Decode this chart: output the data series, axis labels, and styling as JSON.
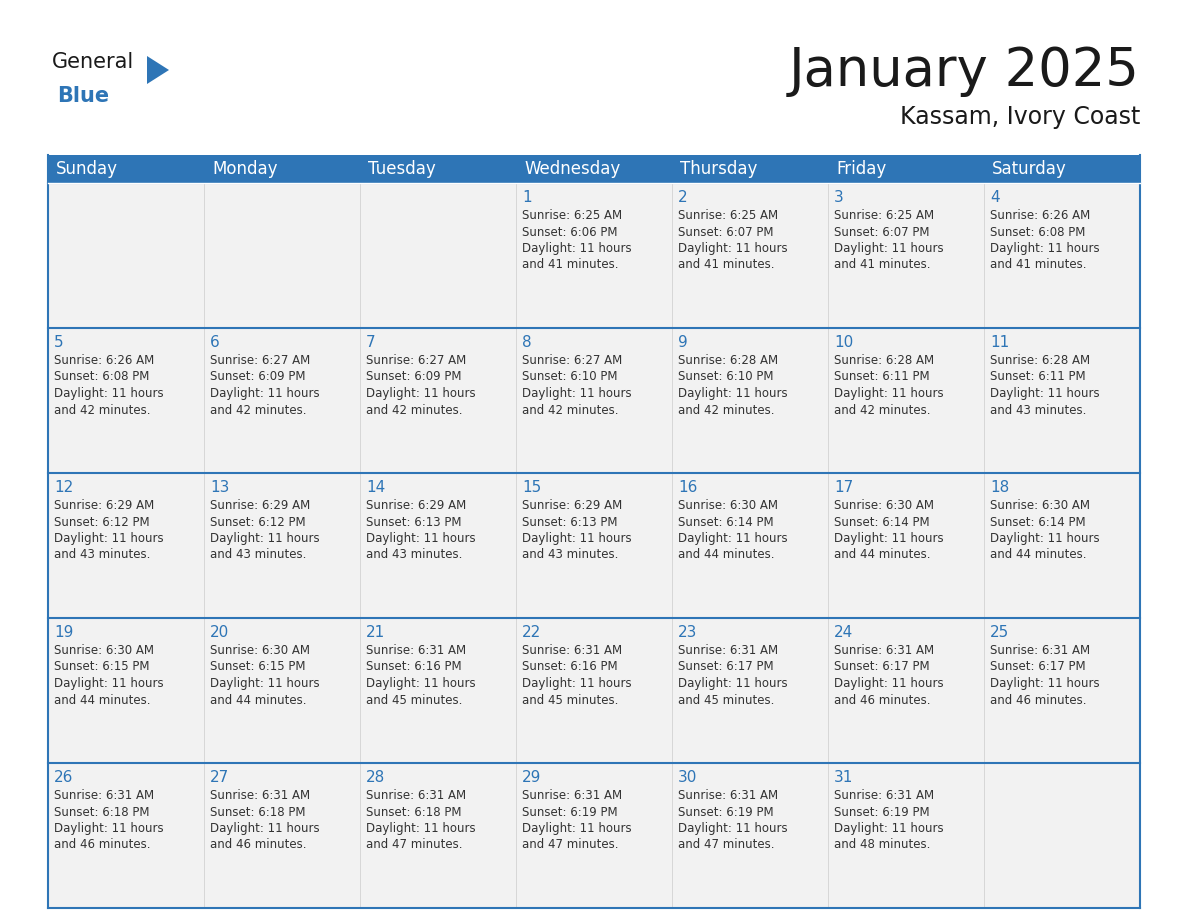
{
  "title": "January 2025",
  "subtitle": "Kassam, Ivory Coast",
  "header_bg": "#2E75B6",
  "header_text_color": "#FFFFFF",
  "cell_bg_light": "#F2F2F2",
  "cell_bg_white": "#FFFFFF",
  "cell_border_color": "#2E75B6",
  "day_number_color": "#2E75B6",
  "cell_text_color": "#333333",
  "background_color": "#FFFFFF",
  "days_of_week": [
    "Sunday",
    "Monday",
    "Tuesday",
    "Wednesday",
    "Thursday",
    "Friday",
    "Saturday"
  ],
  "weeks": [
    [
      {
        "day": 0,
        "info": ""
      },
      {
        "day": 0,
        "info": ""
      },
      {
        "day": 0,
        "info": ""
      },
      {
        "day": 1,
        "info": "Sunrise: 6:25 AM\nSunset: 6:06 PM\nDaylight: 11 hours\nand 41 minutes."
      },
      {
        "day": 2,
        "info": "Sunrise: 6:25 AM\nSunset: 6:07 PM\nDaylight: 11 hours\nand 41 minutes."
      },
      {
        "day": 3,
        "info": "Sunrise: 6:25 AM\nSunset: 6:07 PM\nDaylight: 11 hours\nand 41 minutes."
      },
      {
        "day": 4,
        "info": "Sunrise: 6:26 AM\nSunset: 6:08 PM\nDaylight: 11 hours\nand 41 minutes."
      }
    ],
    [
      {
        "day": 5,
        "info": "Sunrise: 6:26 AM\nSunset: 6:08 PM\nDaylight: 11 hours\nand 42 minutes."
      },
      {
        "day": 6,
        "info": "Sunrise: 6:27 AM\nSunset: 6:09 PM\nDaylight: 11 hours\nand 42 minutes."
      },
      {
        "day": 7,
        "info": "Sunrise: 6:27 AM\nSunset: 6:09 PM\nDaylight: 11 hours\nand 42 minutes."
      },
      {
        "day": 8,
        "info": "Sunrise: 6:27 AM\nSunset: 6:10 PM\nDaylight: 11 hours\nand 42 minutes."
      },
      {
        "day": 9,
        "info": "Sunrise: 6:28 AM\nSunset: 6:10 PM\nDaylight: 11 hours\nand 42 minutes."
      },
      {
        "day": 10,
        "info": "Sunrise: 6:28 AM\nSunset: 6:11 PM\nDaylight: 11 hours\nand 42 minutes."
      },
      {
        "day": 11,
        "info": "Sunrise: 6:28 AM\nSunset: 6:11 PM\nDaylight: 11 hours\nand 43 minutes."
      }
    ],
    [
      {
        "day": 12,
        "info": "Sunrise: 6:29 AM\nSunset: 6:12 PM\nDaylight: 11 hours\nand 43 minutes."
      },
      {
        "day": 13,
        "info": "Sunrise: 6:29 AM\nSunset: 6:12 PM\nDaylight: 11 hours\nand 43 minutes."
      },
      {
        "day": 14,
        "info": "Sunrise: 6:29 AM\nSunset: 6:13 PM\nDaylight: 11 hours\nand 43 minutes."
      },
      {
        "day": 15,
        "info": "Sunrise: 6:29 AM\nSunset: 6:13 PM\nDaylight: 11 hours\nand 43 minutes."
      },
      {
        "day": 16,
        "info": "Sunrise: 6:30 AM\nSunset: 6:14 PM\nDaylight: 11 hours\nand 44 minutes."
      },
      {
        "day": 17,
        "info": "Sunrise: 6:30 AM\nSunset: 6:14 PM\nDaylight: 11 hours\nand 44 minutes."
      },
      {
        "day": 18,
        "info": "Sunrise: 6:30 AM\nSunset: 6:14 PM\nDaylight: 11 hours\nand 44 minutes."
      }
    ],
    [
      {
        "day": 19,
        "info": "Sunrise: 6:30 AM\nSunset: 6:15 PM\nDaylight: 11 hours\nand 44 minutes."
      },
      {
        "day": 20,
        "info": "Sunrise: 6:30 AM\nSunset: 6:15 PM\nDaylight: 11 hours\nand 44 minutes."
      },
      {
        "day": 21,
        "info": "Sunrise: 6:31 AM\nSunset: 6:16 PM\nDaylight: 11 hours\nand 45 minutes."
      },
      {
        "day": 22,
        "info": "Sunrise: 6:31 AM\nSunset: 6:16 PM\nDaylight: 11 hours\nand 45 minutes."
      },
      {
        "day": 23,
        "info": "Sunrise: 6:31 AM\nSunset: 6:17 PM\nDaylight: 11 hours\nand 45 minutes."
      },
      {
        "day": 24,
        "info": "Sunrise: 6:31 AM\nSunset: 6:17 PM\nDaylight: 11 hours\nand 46 minutes."
      },
      {
        "day": 25,
        "info": "Sunrise: 6:31 AM\nSunset: 6:17 PM\nDaylight: 11 hours\nand 46 minutes."
      }
    ],
    [
      {
        "day": 26,
        "info": "Sunrise: 6:31 AM\nSunset: 6:18 PM\nDaylight: 11 hours\nand 46 minutes."
      },
      {
        "day": 27,
        "info": "Sunrise: 6:31 AM\nSunset: 6:18 PM\nDaylight: 11 hours\nand 46 minutes."
      },
      {
        "day": 28,
        "info": "Sunrise: 6:31 AM\nSunset: 6:18 PM\nDaylight: 11 hours\nand 47 minutes."
      },
      {
        "day": 29,
        "info": "Sunrise: 6:31 AM\nSunset: 6:19 PM\nDaylight: 11 hours\nand 47 minutes."
      },
      {
        "day": 30,
        "info": "Sunrise: 6:31 AM\nSunset: 6:19 PM\nDaylight: 11 hours\nand 47 minutes."
      },
      {
        "day": 31,
        "info": "Sunrise: 6:31 AM\nSunset: 6:19 PM\nDaylight: 11 hours\nand 48 minutes."
      },
      {
        "day": 0,
        "info": ""
      }
    ]
  ],
  "logo_text_general": "General",
  "logo_text_blue": "Blue",
  "logo_triangle_color": "#2E75B6",
  "logo_general_color": "#1a1a1a",
  "logo_blue_color": "#2E75B6",
  "title_color": "#1a1a1a",
  "subtitle_color": "#1a1a1a",
  "title_fontsize": 38,
  "subtitle_fontsize": 17,
  "header_fontsize": 12,
  "day_num_fontsize": 11,
  "cell_text_fontsize": 8.5
}
